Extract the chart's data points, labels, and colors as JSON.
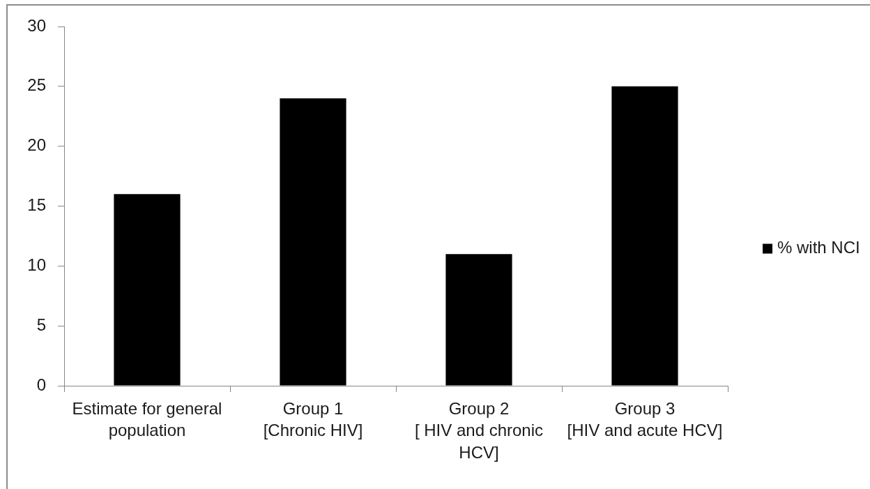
{
  "chart_data": {
    "type": "bar",
    "categories": [
      "Estimate for general population",
      "Group 1\n[Chronic HIV]",
      "Group 2\n[ HIV and chronic HCV]",
      "Group 3\n[HIV and acute HCV]"
    ],
    "series": [
      {
        "name": "% with NCI",
        "color": "#000000",
        "values": [
          16,
          24,
          11,
          25
        ]
      }
    ],
    "ylim": [
      0,
      30
    ],
    "yticks": [
      0,
      5,
      10,
      15,
      20,
      25,
      30
    ],
    "grid": false,
    "legend": "right"
  }
}
